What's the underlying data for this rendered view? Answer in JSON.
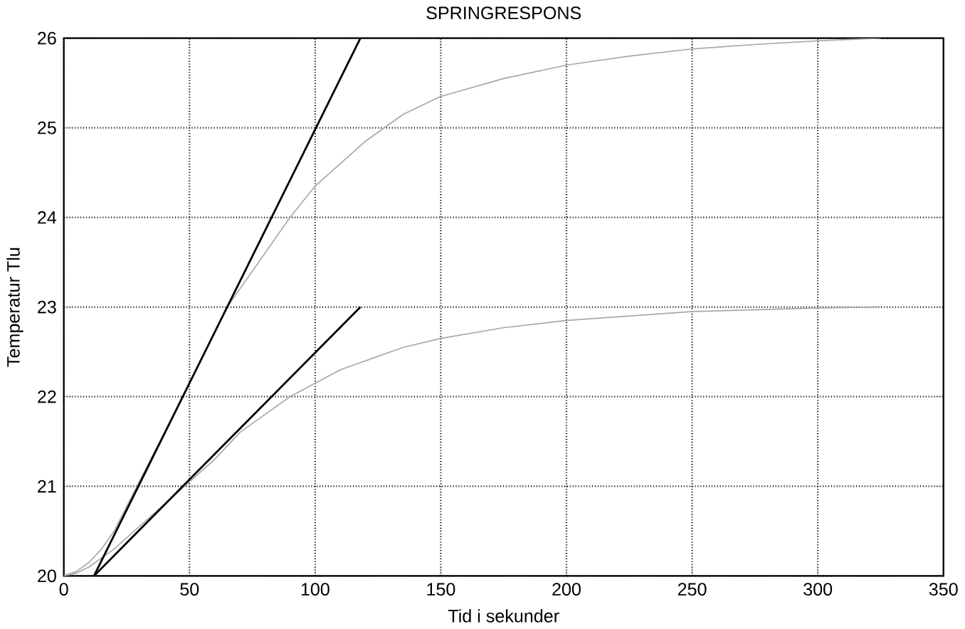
{
  "chart_data": {
    "type": "line",
    "title": "SPRINGRESPONS",
    "xlabel": "Tid i sekunder",
    "ylabel": "Temperatur Tlu",
    "xlim": [
      0,
      350
    ],
    "ylim": [
      20,
      26
    ],
    "xticks": [
      0,
      50,
      100,
      150,
      200,
      250,
      300,
      350
    ],
    "yticks": [
      20,
      21,
      22,
      23,
      24,
      25,
      26
    ],
    "grid": true,
    "line_style": "solid",
    "series": [
      {
        "color": "#a8a8a8",
        "x": [
          0,
          5,
          10,
          15,
          20,
          30,
          40,
          50,
          65,
          80,
          90,
          100,
          110,
          120,
          135,
          150,
          175,
          200,
          225,
          250,
          275,
          300,
          325
        ],
        "values": [
          20,
          20.05,
          20.15,
          20.3,
          20.5,
          21.05,
          21.6,
          22.15,
          23.0,
          23.6,
          24.0,
          24.35,
          24.6,
          24.85,
          25.15,
          25.35,
          25.55,
          25.7,
          25.8,
          25.88,
          25.93,
          25.97,
          26.0
        ]
      },
      {
        "color": "#a8a8a8",
        "x": [
          0,
          5,
          10,
          20,
          30,
          40,
          50,
          60,
          70,
          80,
          90,
          100,
          110,
          120,
          135,
          150,
          175,
          200,
          225,
          250,
          275,
          300,
          325
        ],
        "values": [
          20,
          20.03,
          20.1,
          20.3,
          20.55,
          20.8,
          21.05,
          21.3,
          21.6,
          21.8,
          22.0,
          22.15,
          22.3,
          22.4,
          22.55,
          22.65,
          22.77,
          22.85,
          22.9,
          22.95,
          22.97,
          22.99,
          23.0
        ]
      },
      {
        "color": "#000000",
        "x": [
          12,
          118
        ],
        "values": [
          20,
          26
        ]
      },
      {
        "color": "#000000",
        "x": [
          12,
          118
        ],
        "values": [
          20,
          23
        ]
      }
    ]
  }
}
